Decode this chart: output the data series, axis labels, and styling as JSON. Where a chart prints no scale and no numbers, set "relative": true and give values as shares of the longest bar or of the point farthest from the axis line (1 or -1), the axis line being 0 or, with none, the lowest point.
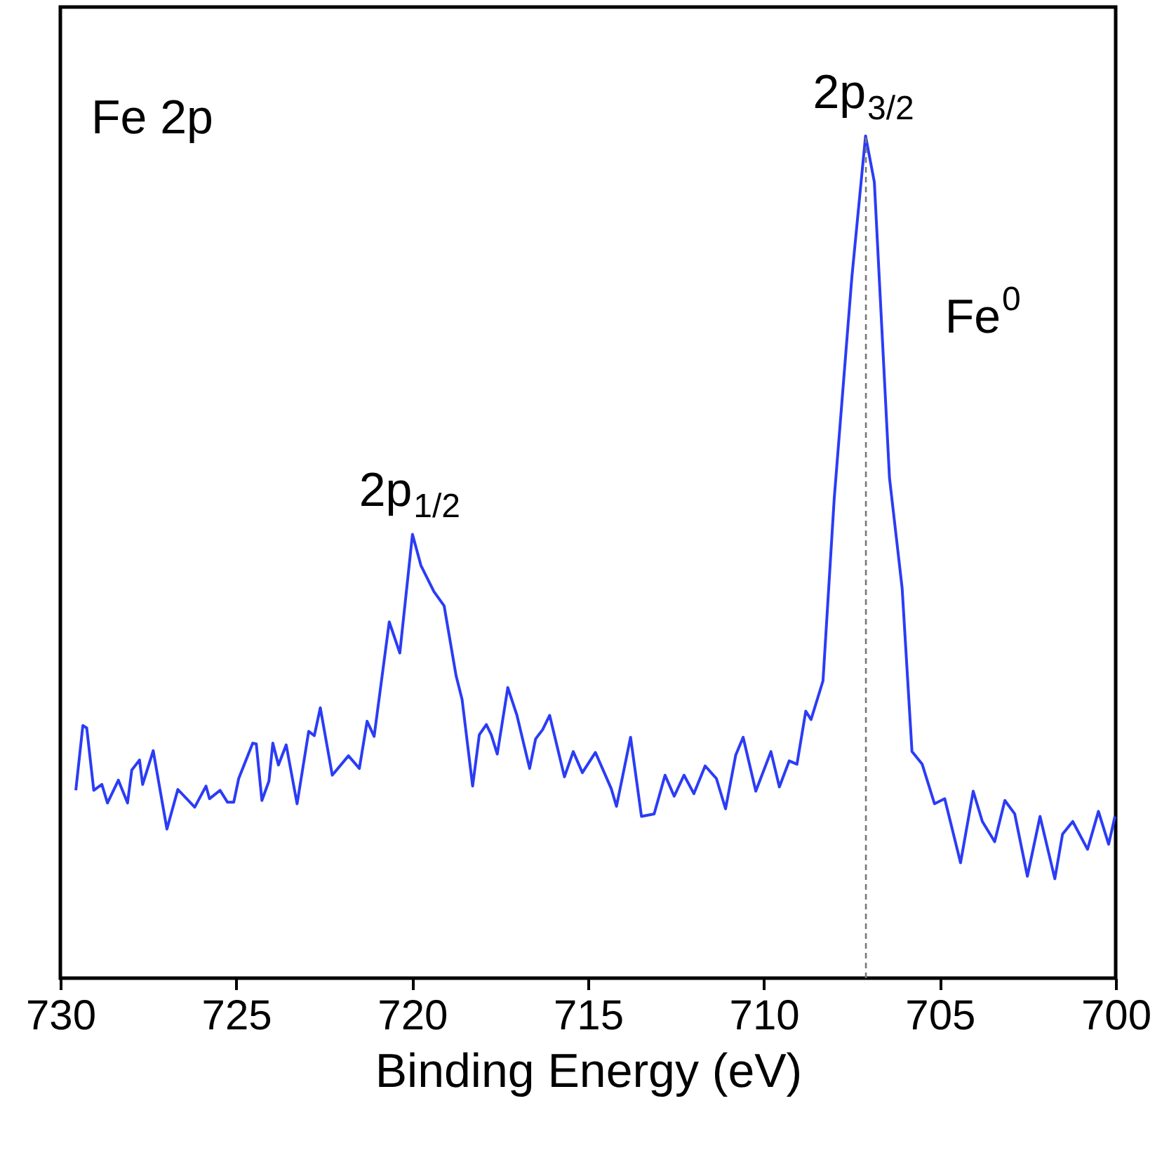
{
  "chart_data": {
    "type": "line",
    "relative": true,
    "xlabel": "Binding Energy (eV)",
    "xlim": [
      730,
      700
    ],
    "xticks": [
      730,
      725,
      720,
      715,
      710,
      705,
      700
    ],
    "series": [
      {
        "color": "#2b3cf5",
        "x": [
          729.56,
          729.36,
          729.25,
          729.05,
          728.82,
          728.66,
          728.35,
          728.09,
          727.97,
          727.75,
          727.66,
          727.36,
          726.97,
          726.66,
          726.18,
          725.86,
          725.76,
          725.46,
          725.25,
          725.07,
          724.93,
          724.53,
          724.43,
          724.27,
          724.07,
          723.96,
          723.8,
          723.58,
          723.27,
          722.94,
          722.78,
          722.61,
          722.27,
          721.81,
          721.5,
          721.28,
          721.08,
          720.65,
          720.35,
          719.99,
          719.75,
          719.38,
          719.09,
          718.75,
          718.58,
          718.28,
          718.09,
          717.89,
          717.75,
          717.58,
          717.28,
          717.02,
          716.66,
          716.49,
          716.29,
          716.09,
          715.67,
          715.42,
          715.16,
          714.79,
          714.34,
          714.19,
          713.79,
          713.48,
          713.12,
          712.81,
          712.55,
          712.27,
          711.99,
          711.67,
          711.35,
          711.09,
          710.8,
          710.59,
          710.23,
          709.8,
          709.56,
          709.28,
          709.06,
          708.81,
          708.66,
          708.32,
          708.0,
          707.5,
          707.11,
          706.86,
          706.43,
          706.07,
          705.79,
          705.5,
          705.15,
          704.86,
          704.41,
          704.05,
          703.79,
          703.44,
          703.15,
          702.87,
          702.51,
          702.15,
          701.73,
          701.51,
          701.22,
          700.8,
          700.49,
          700.2,
          700.02
        ],
        "values": [
          0.223,
          0.3,
          0.297,
          0.223,
          0.23,
          0.208,
          0.235,
          0.208,
          0.247,
          0.259,
          0.23,
          0.27,
          0.177,
          0.224,
          0.203,
          0.228,
          0.213,
          0.223,
          0.209,
          0.209,
          0.237,
          0.279,
          0.278,
          0.211,
          0.234,
          0.279,
          0.253,
          0.277,
          0.207,
          0.293,
          0.288,
          0.321,
          0.241,
          0.264,
          0.249,
          0.305,
          0.287,
          0.423,
          0.386,
          0.527,
          0.49,
          0.459,
          0.442,
          0.359,
          0.331,
          0.228,
          0.289,
          0.301,
          0.289,
          0.266,
          0.345,
          0.312,
          0.249,
          0.284,
          0.295,
          0.312,
          0.239,
          0.269,
          0.244,
          0.268,
          0.225,
          0.204,
          0.286,
          0.192,
          0.195,
          0.241,
          0.216,
          0.241,
          0.219,
          0.252,
          0.237,
          0.201,
          0.265,
          0.286,
          0.222,
          0.269,
          0.227,
          0.258,
          0.254,
          0.317,
          0.307,
          0.353,
          0.57,
          0.832,
          1.0,
          0.945,
          0.594,
          0.463,
          0.269,
          0.254,
          0.207,
          0.213,
          0.137,
          0.222,
          0.186,
          0.162,
          0.211,
          0.195,
          0.121,
          0.192,
          0.118,
          0.171,
          0.186,
          0.153,
          0.198,
          0.159,
          0.192
        ]
      }
    ],
    "ref_lines": [
      {
        "axis": "x",
        "value": 707.1,
        "color": "#777777",
        "line_style": "dashed"
      }
    ],
    "annotations": [
      "Fe 2p",
      {
        "text": "2p$_{3/2}$",
        "x": 707.1,
        "y": 1.0
      },
      {
        "text": "2p$_{1/2}$",
        "x": 720.0,
        "y": 0.527
      },
      "Fe$^{0}$"
    ]
  }
}
